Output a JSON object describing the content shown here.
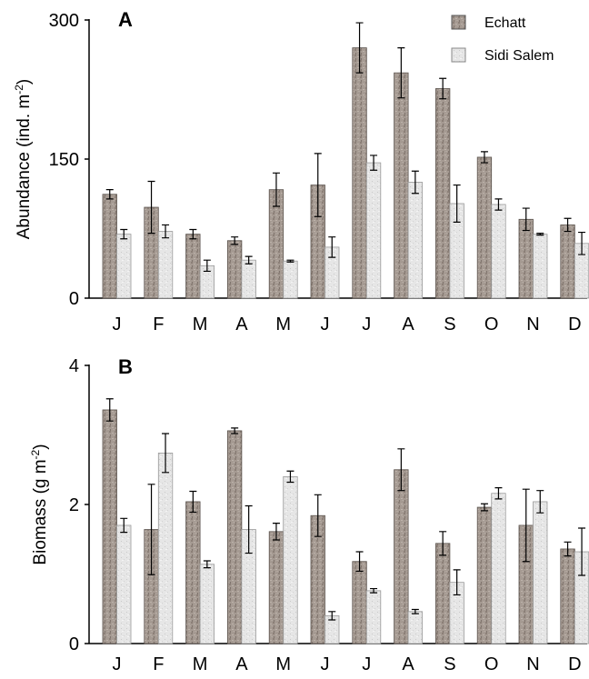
{
  "chart_data": [
    {
      "type": "bar",
      "panel_label": "A",
      "ylabel": "Abundance (ind. m",
      "ylabel_sup": "-2",
      "ylabel_end": ")",
      "ylim": [
        0,
        300
      ],
      "yticks": [
        "0",
        "150",
        "300"
      ],
      "categories": [
        "J",
        "F",
        "M",
        "A",
        "M",
        "J",
        "J",
        "A",
        "S",
        "O",
        "N",
        "D"
      ],
      "legend_position": "top-right",
      "series": [
        {
          "name": "Echatt",
          "color": "#a49890",
          "values": [
            112,
            98,
            69,
            62,
            117,
            122,
            270,
            243,
            226,
            152,
            85,
            79
          ],
          "errors": [
            5,
            28,
            5,
            4,
            18,
            34,
            27,
            27,
            11,
            6,
            12,
            7
          ]
        },
        {
          "name": "Sidi Salem",
          "color": "#e4e4e4",
          "values": [
            69,
            72,
            35,
            41,
            40,
            55,
            146,
            125,
            102,
            101,
            69,
            59
          ],
          "errors": [
            5,
            7,
            6,
            4,
            1,
            11,
            8,
            12,
            20,
            6,
            1,
            12
          ]
        }
      ]
    },
    {
      "type": "bar",
      "panel_label": "B",
      "ylabel": "Biomass (g m",
      "ylabel_sup": "-2",
      "ylabel_end": ")",
      "ylim": [
        0,
        4
      ],
      "yticks": [
        "0",
        "2",
        "4"
      ],
      "categories": [
        "J",
        "F",
        "M",
        "A",
        "M",
        "J",
        "J",
        "A",
        "S",
        "O",
        "N",
        "D"
      ],
      "series": [
        {
          "name": "Echatt",
          "color": "#a49890",
          "values": [
            3.36,
            1.64,
            2.04,
            3.06,
            1.61,
            1.84,
            1.18,
            2.5,
            1.44,
            1.96,
            1.7,
            1.36
          ],
          "errors": [
            0.16,
            0.65,
            0.15,
            0.04,
            0.12,
            0.3,
            0.14,
            0.3,
            0.17,
            0.05,
            0.52,
            0.1
          ]
        },
        {
          "name": "Sidi Salem",
          "color": "#e4e4e4",
          "values": [
            1.7,
            2.74,
            1.14,
            1.64,
            2.4,
            0.4,
            0.76,
            0.46,
            0.88,
            2.16,
            2.04,
            1.32
          ],
          "errors": [
            0.1,
            0.28,
            0.05,
            0.34,
            0.08,
            0.06,
            0.03,
            0.03,
            0.18,
            0.08,
            0.16,
            0.34
          ]
        }
      ]
    }
  ]
}
